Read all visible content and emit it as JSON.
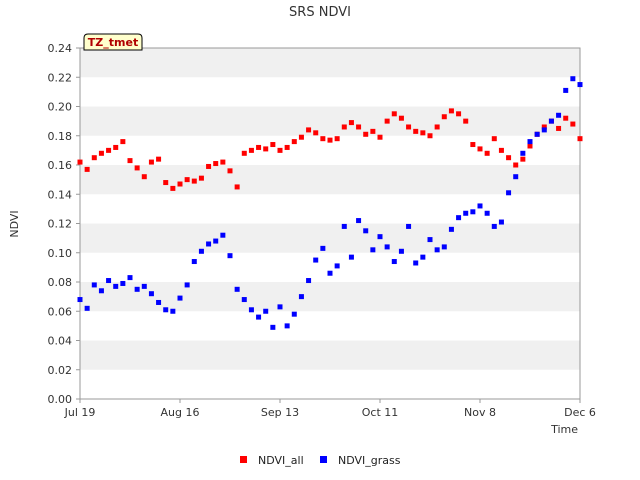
{
  "chart_data": {
    "type": "scatter",
    "title": "SRS NDVI",
    "badge": "TZ_tmet",
    "xlabel": "Time",
    "ylabel": "NDVI",
    "x_ticks": [
      "Jul 19",
      "Aug 16",
      "Sep 13",
      "Oct 11",
      "Nov 8",
      "Dec 6"
    ],
    "x_range": [
      "Jul 19",
      "Dec 6"
    ],
    "y_ticks": [
      "0.00",
      "0.02",
      "0.04",
      "0.06",
      "0.08",
      "0.10",
      "0.12",
      "0.14",
      "0.16",
      "0.18",
      "0.20",
      "0.22",
      "0.24"
    ],
    "ylim": [
      0,
      0.24
    ],
    "grid": "alternating horizontal bands",
    "legend_position": "bottom-center",
    "series": [
      {
        "name": "NDVI_all",
        "color": "#ff0000",
        "x": [
          "Jul 19",
          "Jul 21",
          "Jul 23",
          "Jul 25",
          "Jul 27",
          "Jul 29",
          "Jul 31",
          "Aug 2",
          "Aug 4",
          "Aug 6",
          "Aug 8",
          "Aug 10",
          "Aug 12",
          "Aug 14",
          "Aug 16",
          "Aug 18",
          "Aug 20",
          "Aug 22",
          "Aug 24",
          "Aug 26",
          "Aug 28",
          "Aug 30",
          "Sep 1",
          "Sep 3",
          "Sep 5",
          "Sep 7",
          "Sep 9",
          "Sep 11",
          "Sep 13",
          "Sep 15",
          "Sep 17",
          "Sep 19",
          "Sep 21",
          "Sep 23",
          "Sep 25",
          "Sep 27",
          "Sep 29",
          "Oct 1",
          "Oct 3",
          "Oct 5",
          "Oct 7",
          "Oct 9",
          "Oct 11",
          "Oct 13",
          "Oct 15",
          "Oct 17",
          "Oct 19",
          "Oct 21",
          "Oct 23",
          "Oct 25",
          "Oct 27",
          "Oct 29",
          "Oct 31",
          "Nov 2",
          "Nov 4",
          "Nov 6",
          "Nov 8",
          "Nov 10",
          "Nov 12",
          "Nov 14",
          "Nov 16",
          "Nov 18",
          "Nov 20",
          "Nov 22",
          "Nov 24",
          "Nov 26",
          "Nov 28",
          "Nov 30",
          "Dec 2",
          "Dec 4",
          "Dec 6"
        ],
        "y": [
          0.162,
          0.157,
          0.165,
          0.168,
          0.17,
          0.172,
          0.176,
          0.163,
          0.158,
          0.152,
          0.162,
          0.164,
          0.148,
          0.144,
          0.147,
          0.15,
          0.149,
          0.151,
          0.159,
          0.161,
          0.162,
          0.156,
          0.145,
          0.168,
          0.17,
          0.172,
          0.171,
          0.174,
          0.17,
          0.172,
          0.176,
          0.179,
          0.184,
          0.182,
          0.178,
          0.177,
          0.178,
          0.186,
          0.189,
          0.186,
          0.181,
          0.183,
          0.179,
          0.19,
          0.195,
          0.192,
          0.186,
          0.183,
          0.182,
          0.18,
          0.186,
          0.193,
          0.197,
          0.195,
          0.19,
          0.174,
          0.171,
          0.168,
          0.178,
          0.17,
          0.165,
          0.16,
          0.164,
          0.173,
          0.181,
          0.186,
          0.19,
          0.185,
          0.192,
          0.188,
          0.178
        ]
      },
      {
        "name": "NDVI_grass",
        "color": "#0000ff",
        "x": [
          "Jul 19",
          "Jul 21",
          "Jul 23",
          "Jul 25",
          "Jul 27",
          "Jul 29",
          "Jul 31",
          "Aug 2",
          "Aug 4",
          "Aug 6",
          "Aug 8",
          "Aug 10",
          "Aug 12",
          "Aug 14",
          "Aug 16",
          "Aug 18",
          "Aug 20",
          "Aug 22",
          "Aug 24",
          "Aug 26",
          "Aug 28",
          "Aug 30",
          "Sep 1",
          "Sep 3",
          "Sep 5",
          "Sep 7",
          "Sep 9",
          "Sep 11",
          "Sep 13",
          "Sep 15",
          "Sep 17",
          "Sep 19",
          "Sep 21",
          "Sep 23",
          "Sep 25",
          "Sep 27",
          "Sep 29",
          "Oct 1",
          "Oct 3",
          "Oct 5",
          "Oct 7",
          "Oct 9",
          "Oct 11",
          "Oct 13",
          "Oct 15",
          "Oct 17",
          "Oct 19",
          "Oct 21",
          "Oct 23",
          "Oct 25",
          "Oct 27",
          "Oct 29",
          "Oct 31",
          "Nov 2",
          "Nov 4",
          "Nov 6",
          "Nov 8",
          "Nov 10",
          "Nov 12",
          "Nov 14",
          "Nov 16",
          "Nov 18",
          "Nov 20",
          "Nov 22",
          "Nov 24",
          "Nov 26",
          "Nov 28",
          "Nov 30",
          "Dec 2",
          "Dec 4",
          "Dec 6"
        ],
        "y": [
          0.068,
          0.062,
          0.078,
          0.074,
          0.081,
          0.077,
          0.079,
          0.083,
          0.075,
          0.077,
          0.072,
          0.066,
          0.061,
          0.06,
          0.069,
          0.078,
          0.094,
          0.101,
          0.106,
          0.108,
          0.112,
          0.098,
          0.075,
          0.068,
          0.061,
          0.056,
          0.06,
          0.049,
          0.063,
          0.05,
          0.058,
          0.07,
          0.081,
          0.095,
          0.103,
          0.086,
          0.091,
          0.118,
          0.097,
          0.122,
          0.115,
          0.102,
          0.111,
          0.104,
          0.094,
          0.101,
          0.118,
          0.093,
          0.097,
          0.109,
          0.102,
          0.104,
          0.116,
          0.124,
          0.127,
          0.128,
          0.132,
          0.127,
          0.118,
          0.121,
          0.141,
          0.152,
          0.168,
          0.176,
          0.181,
          0.184,
          0.19,
          0.194,
          0.211,
          0.219,
          0.215
        ]
      }
    ]
  }
}
